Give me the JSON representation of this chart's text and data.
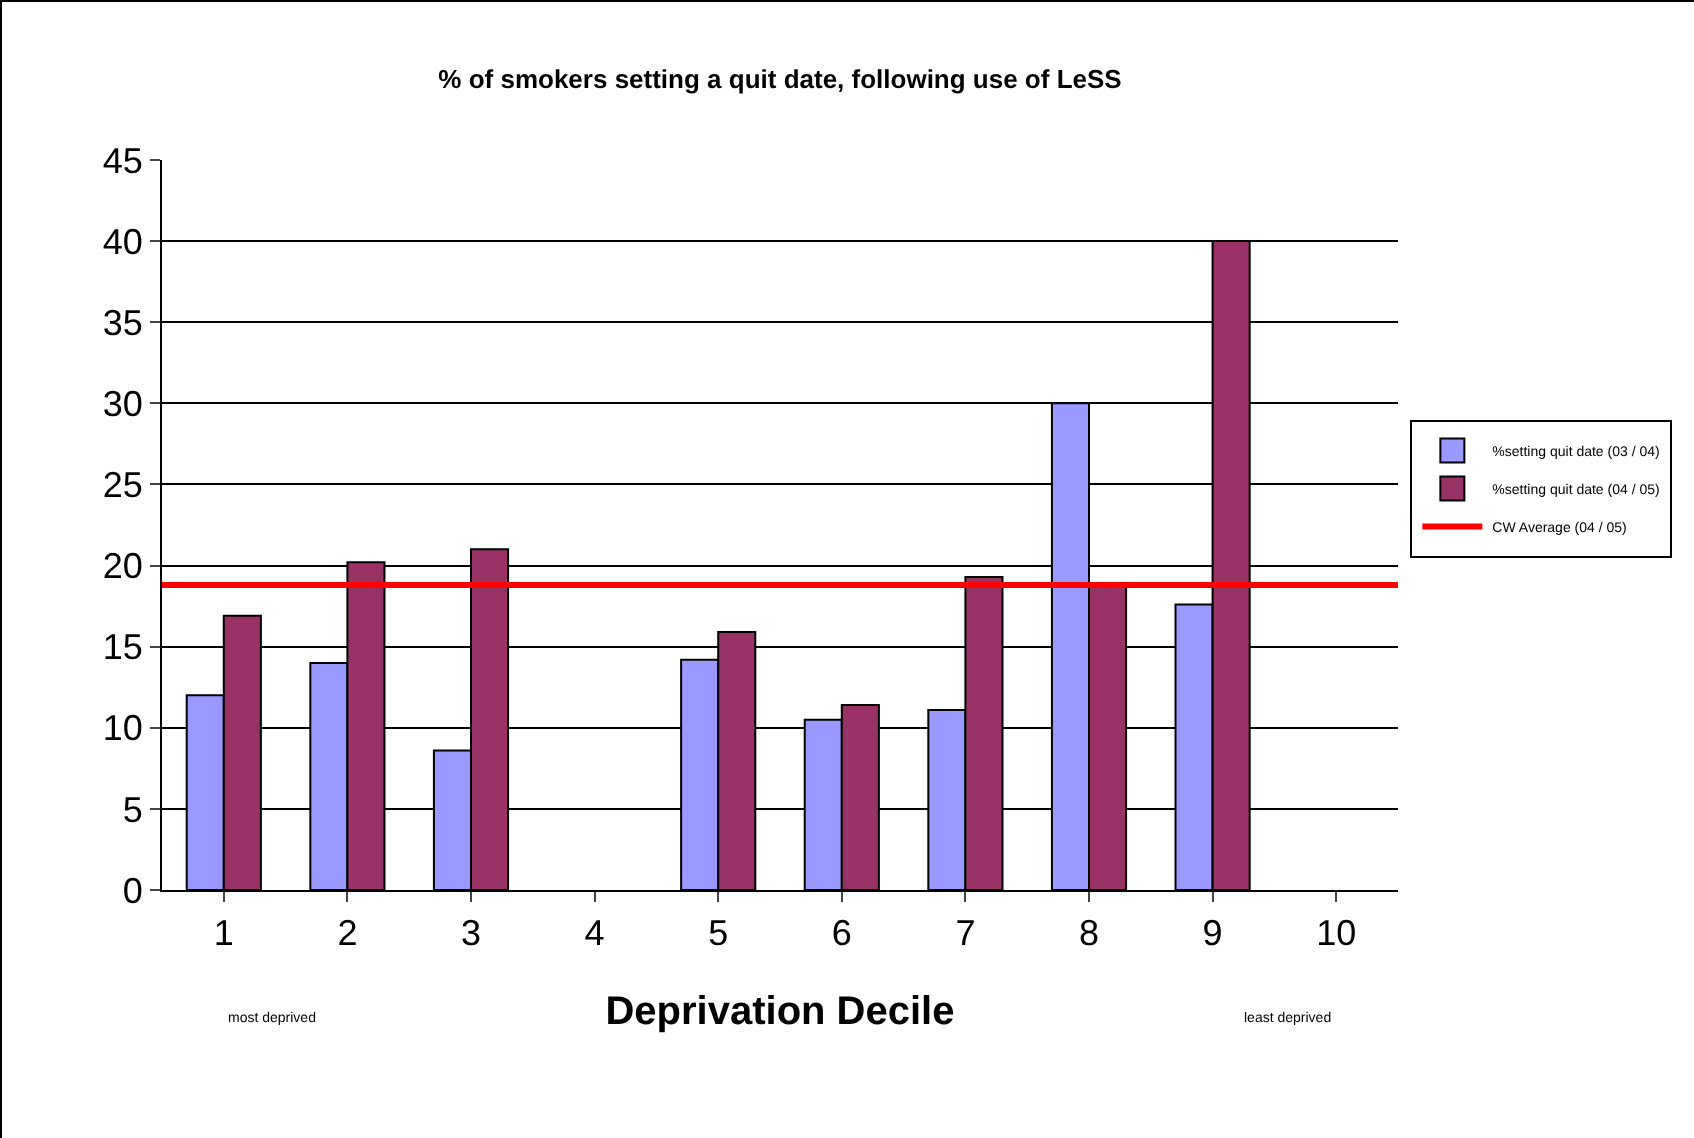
{
  "chart_data": {
    "type": "bar",
    "title": "% of smokers setting a quit date, following use of LeSS",
    "xlabel": "Deprivation Decile",
    "categories": [
      "1",
      "2",
      "3",
      "4",
      "5",
      "6",
      "7",
      "8",
      "9",
      "10"
    ],
    "series": [
      {
        "name": "%setting quit date (03 / 04)",
        "color": "#9999ff",
        "values": [
          12,
          14,
          8.6,
          null,
          14.2,
          10.5,
          11.1,
          30,
          17.6,
          null
        ]
      },
      {
        "name": "%setting quit date (04 / 05)",
        "color": "#993366",
        "values": [
          16.9,
          20.2,
          21,
          null,
          15.9,
          11.4,
          19.3,
          18.8,
          40,
          null
        ]
      }
    ],
    "ref_lines": [
      {
        "axis": "y",
        "value": 18.8,
        "label": "CW Average (04 / 05)",
        "color": "#ff0000"
      }
    ],
    "annotations": [
      "most deprived",
      "least deprived"
    ],
    "ylim": [
      0,
      45
    ],
    "yticks": [
      0,
      5,
      10,
      15,
      20,
      25,
      30,
      35,
      40,
      45
    ],
    "grid": "y",
    "legend": "right"
  }
}
